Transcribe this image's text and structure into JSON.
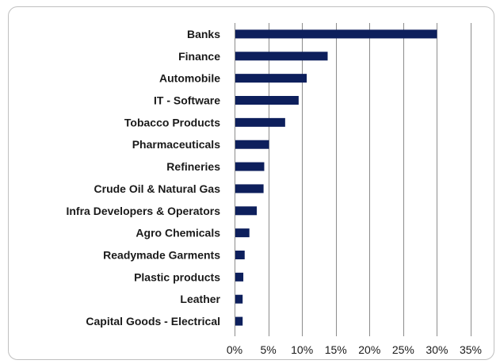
{
  "chart_data": {
    "type": "bar",
    "orientation": "horizontal",
    "title": "",
    "xlabel": "",
    "ylabel": "",
    "categories": [
      "Banks",
      "Finance",
      "Automobile",
      "IT - Software",
      "Tobacco Products",
      "Pharmaceuticals",
      "Refineries",
      "Crude Oil & Natural Gas",
      "Infra Developers & Operators",
      "Agro Chemicals",
      "Readymade Garments",
      "Plastic products",
      "Leather",
      "Capital Goods - Electrical"
    ],
    "values": [
      30.0,
      13.8,
      10.7,
      9.5,
      7.5,
      5.1,
      4.4,
      4.3,
      3.3,
      2.2,
      1.5,
      1.3,
      1.2,
      1.2
    ],
    "xlim": [
      0,
      35
    ],
    "x_ticks": [
      0,
      5,
      10,
      15,
      20,
      25,
      30,
      35
    ],
    "x_tick_labels": [
      "0%",
      "5%",
      "10%",
      "15%",
      "20%",
      "25%",
      "30%",
      "35%"
    ],
    "grid": "vertical",
    "legend": "none",
    "bar_color": "#0d1f5c"
  }
}
